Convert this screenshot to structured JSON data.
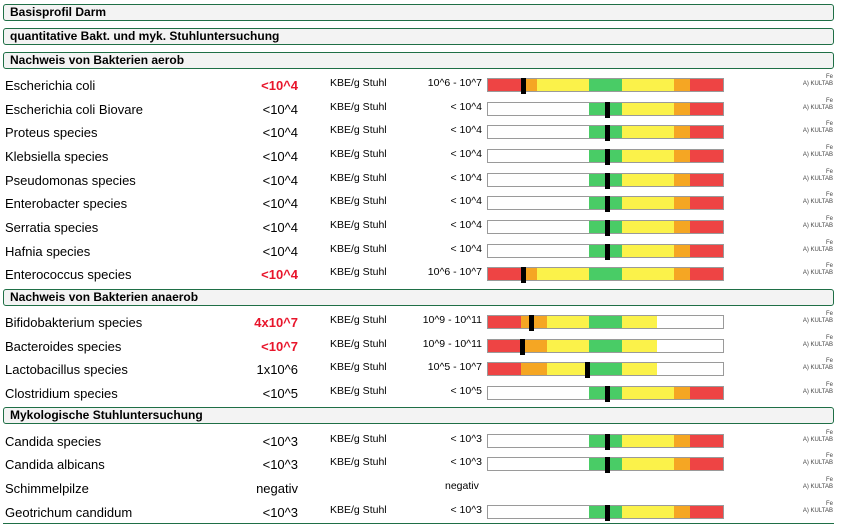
{
  "sections": [
    {
      "title": "Basisprofil Darm"
    },
    {
      "title": "quantitative Bakt. und myk. Stuhluntersuchung"
    },
    {
      "title": "Nachweis von Bakterien aerob"
    },
    {
      "title": "Nachweis von Bakterien anaerob"
    },
    {
      "title": "Mykologische Stuhluntersuchung"
    }
  ],
  "colors": {
    "red": "#ee4444",
    "orange": "#f5a623",
    "yellow": "#fbf24a",
    "green": "#49cc66",
    "highlight": "#e8152b",
    "border": "#1f6f46"
  },
  "rows": [
    {
      "name": "Escherichia coli",
      "result": "<10^4",
      "unit": "KBE/g Stuhl",
      "ref": "10^6 - 10^7",
      "fe": "Fe",
      "tag": "A) KULTAB",
      "flag": true,
      "scale": "full",
      "marker": 0.15
    },
    {
      "name": "Escherichia coli Biovare",
      "result": "<10^4",
      "unit": "KBE/g Stuhl",
      "ref": "< 10^4",
      "fe": "Fe",
      "tag": "A) KULTAB",
      "flag": false,
      "scale": "half",
      "marker": 0.505
    },
    {
      "name": "Proteus species",
      "result": "<10^4",
      "unit": "KBE/g Stuhl",
      "ref": "< 10^4",
      "fe": "Fe",
      "tag": "A) KULTAB",
      "flag": false,
      "scale": "half",
      "marker": 0.505
    },
    {
      "name": "Klebsiella species",
      "result": "<10^4",
      "unit": "KBE/g Stuhl",
      "ref": "< 10^4",
      "fe": "Fe",
      "tag": "A) KULTAB",
      "flag": false,
      "scale": "half",
      "marker": 0.505
    },
    {
      "name": "Pseudomonas species",
      "result": "<10^4",
      "unit": "KBE/g Stuhl",
      "ref": "< 10^4",
      "fe": "Fe",
      "tag": "A) KULTAB",
      "flag": false,
      "scale": "half",
      "marker": 0.505
    },
    {
      "name": "Enterobacter species",
      "result": "<10^4",
      "unit": "KBE/g Stuhl",
      "ref": "< 10^4",
      "fe": "Fe",
      "tag": "A) KULTAB",
      "flag": false,
      "scale": "half",
      "marker": 0.505
    },
    {
      "name": "Serratia species",
      "result": "<10^4",
      "unit": "KBE/g Stuhl",
      "ref": "< 10^4",
      "fe": "Fe",
      "tag": "A) KULTAB",
      "flag": false,
      "scale": "half",
      "marker": 0.505
    },
    {
      "name": "Hafnia species",
      "result": "<10^4",
      "unit": "KBE/g Stuhl",
      "ref": "< 10^4",
      "fe": "Fe",
      "tag": "A) KULTAB",
      "flag": false,
      "scale": "half",
      "marker": 0.505
    },
    {
      "name": "Enterococcus species",
      "result": "<10^4",
      "unit": "KBE/g Stuhl",
      "ref": "10^6 - 10^7",
      "fe": "Fe",
      "tag": "A) KULTAB",
      "flag": true,
      "scale": "full",
      "marker": 0.15
    },
    {
      "name": "Bifidobakterium species",
      "result": "4x10^7",
      "unit": "KBE/g Stuhl",
      "ref": "10^9 - 10^11",
      "fe": "Fe",
      "tag": "A) KULTAB",
      "flag": true,
      "scale": "low",
      "marker": 0.185
    },
    {
      "name": "Bacteroides species",
      "result": "<10^7",
      "unit": "KBE/g Stuhl",
      "ref": "10^9 - 10^11",
      "fe": "Fe",
      "tag": "A) KULTAB",
      "flag": true,
      "scale": "low",
      "marker": 0.145
    },
    {
      "name": "Lactobacillus species",
      "result": "1x10^6",
      "unit": "KBE/g Stuhl",
      "ref": "10^5 - 10^7",
      "fe": "Fe",
      "tag": "A) KULTAB",
      "flag": false,
      "scale": "low",
      "marker": 0.42
    },
    {
      "name": "Clostridium species",
      "result": "<10^5",
      "unit": "KBE/g Stuhl",
      "ref": "< 10^5",
      "fe": "Fe",
      "tag": "A) KULTAB",
      "flag": false,
      "scale": "half",
      "marker": 0.505
    },
    {
      "name": "Candida species",
      "result": "<10^3",
      "unit": "KBE/g Stuhl",
      "ref": "< 10^3",
      "fe": "Fe",
      "tag": "A) KULTAB",
      "flag": false,
      "scale": "half",
      "marker": 0.505
    },
    {
      "name": "Candida albicans",
      "result": "<10^3",
      "unit": "KBE/g Stuhl",
      "ref": "< 10^3",
      "fe": "Fe",
      "tag": "A) KULTAB",
      "flag": false,
      "scale": "half",
      "marker": 0.505
    },
    {
      "name": "Schimmelpilze",
      "result": "negativ",
      "unit": "",
      "ref": "negativ",
      "fe": "Fe",
      "tag": "A) KULTAB",
      "flag": false,
      "scale": "none",
      "marker": null
    },
    {
      "name": "Geotrichum candidum",
      "result": "<10^3",
      "unit": "KBE/g Stuhl",
      "ref": "< 10^3",
      "fe": "Fe",
      "tag": "A) KULTAB",
      "flag": false,
      "scale": "half",
      "marker": 0.505
    }
  ]
}
